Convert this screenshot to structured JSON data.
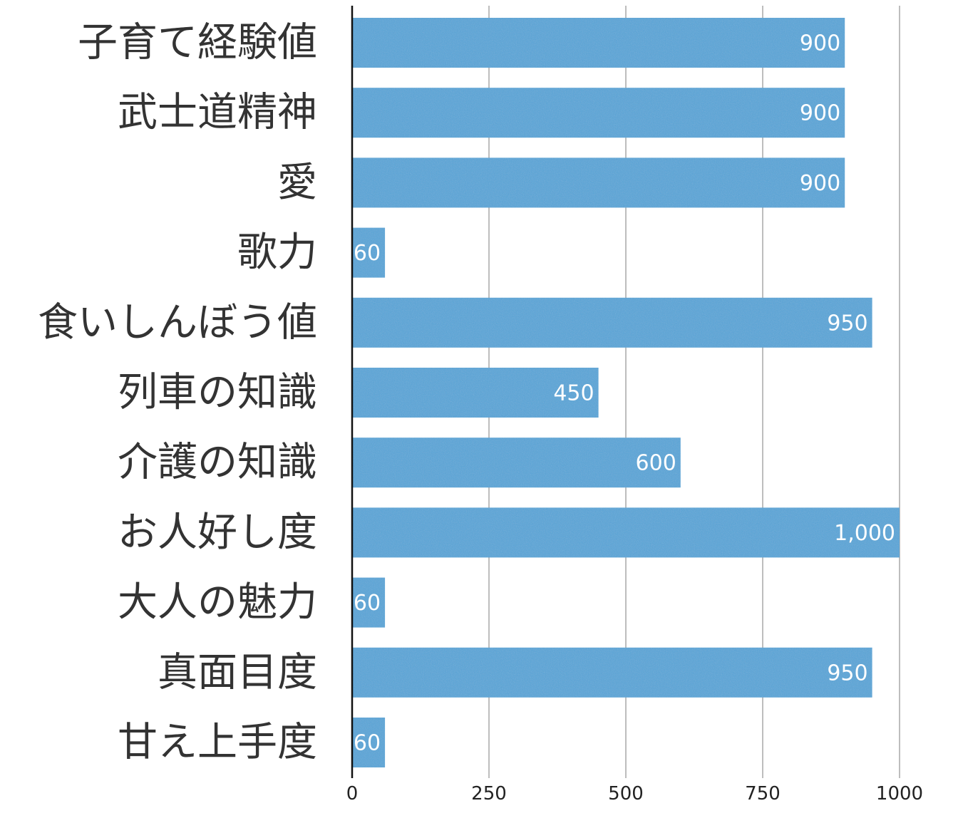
{
  "chart_data": {
    "type": "bar",
    "orientation": "horizontal",
    "title": "",
    "xlabel": "",
    "ylabel": "",
    "categories": [
      "子育て経験値",
      "武士道精神",
      "愛",
      "歌力",
      "食いしんぼう値",
      "列車の知識",
      "介護の知識",
      "お人好し度",
      "大人の魅力",
      "真面目度",
      "甘え上手度"
    ],
    "values": [
      900,
      900,
      900,
      60,
      950,
      450,
      600,
      1000,
      60,
      950,
      60
    ],
    "value_labels": [
      "900",
      "900",
      "900",
      "60",
      "950",
      "450",
      "600",
      "1,000",
      "60",
      "950",
      "60"
    ],
    "xlim": [
      0,
      1000
    ],
    "xticks": [
      0,
      250,
      500,
      750,
      1000
    ],
    "xtick_labels": [
      "0",
      "250",
      "500",
      "750",
      "1000"
    ],
    "grid": true,
    "legend": "none",
    "colors": {
      "bar": "#56a5d8",
      "grid": "#bdbdbd",
      "axis": "#111111",
      "value_label": "#ffffff",
      "category_label": "#333333"
    }
  }
}
